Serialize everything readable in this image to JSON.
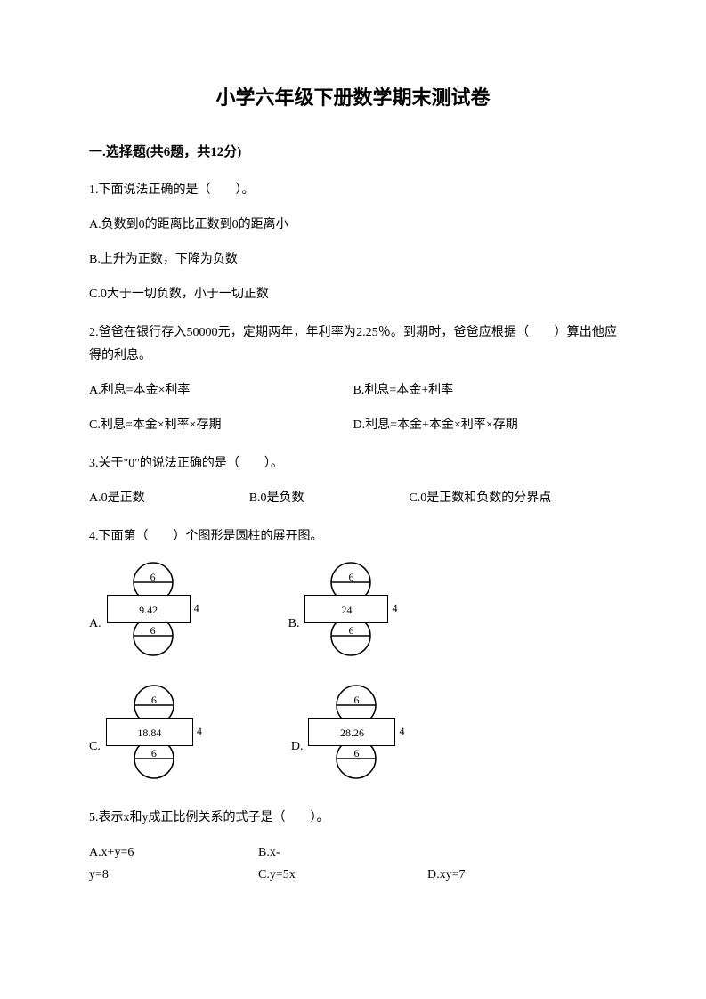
{
  "title": "小学六年级下册数学期末测试卷",
  "section1": {
    "header": "一.选择题(共6题，共12分)"
  },
  "q1": {
    "text": "1.下面说法正确的是（　　）。",
    "a": "A.负数到0的距离比正数到0的距离小",
    "b": "B.上升为正数，下降为负数",
    "c": "C.0大于一切负数，小于一切正数"
  },
  "q2": {
    "text": "2.爸爸在银行存入50000元，定期两年，年利率为2.25％。到期时，爸爸应根据（　　）算出他应得的利息。",
    "a": "A.利息=本金×利率",
    "b": "B.利息=本金+利率",
    "c": "C.利息=本金×利率×存期",
    "d": "D.利息=本金+本金×利率×存期"
  },
  "q3": {
    "text": "3.关于\"0\"的说法正确的是（　　）。",
    "a": "A.0是正数",
    "b": "B.0是负数",
    "c": "C.0是正数和负数的分界点"
  },
  "q4": {
    "text": "4.下面第（　　）个图形是圆柱的展开图。",
    "figures": [
      {
        "label": "A.",
        "circle": "6",
        "width": "9.42",
        "height": "4",
        "rectW": 94
      },
      {
        "label": "B.",
        "circle": "6",
        "width": "24",
        "height": "4",
        "rectW": 94
      },
      {
        "label": "C.",
        "circle": "6",
        "width": "18.84",
        "height": "4",
        "rectW": 98
      },
      {
        "label": "D.",
        "circle": "6",
        "width": "28.26",
        "height": "4",
        "rectW": 98
      }
    ]
  },
  "q5": {
    "text": "5.表示x和y成正比例关系的式子是（　　）。",
    "line1a": "A.x+y=6",
    "line1b": "B.x-",
    "line2a": "y=8",
    "line2b": "C.y=5x",
    "line2c": "D.xy=7"
  },
  "style": {
    "bg": "#ffffff",
    "text_color": "#000000",
    "title_fontsize": 22,
    "body_fontsize": 14,
    "font_family": "SimSun"
  }
}
